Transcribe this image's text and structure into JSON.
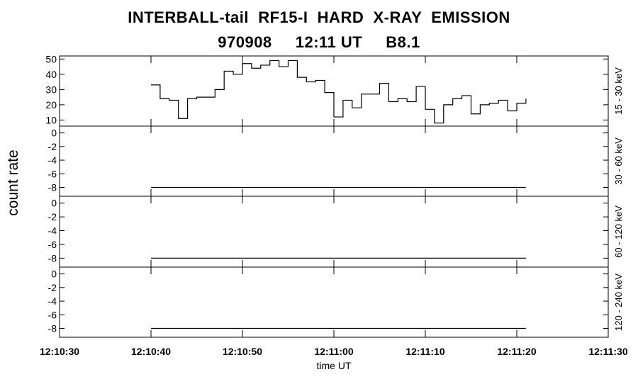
{
  "title": {
    "line1": "INTERBALL-tail  RF15-I  HARD  X-RAY  EMISSION",
    "line2": "970908     12:11 UT     B8.1"
  },
  "ylabel": "count rate",
  "xlabel": "time UT",
  "chart_data": [
    {
      "type": "line",
      "step": true,
      "panel_label": "15 - 30 keV",
      "ylim": [
        6,
        52
      ],
      "yticks": [
        10,
        20,
        30,
        40,
        50
      ],
      "ytick_labels": [
        "10",
        "20",
        "30",
        "40",
        "50"
      ],
      "series": [
        {
          "x": [
            "12:10:40",
            "12:10:41",
            "12:10:42",
            "12:10:43",
            "12:10:44",
            "12:10:45",
            "12:10:46",
            "12:10:47",
            "12:10:48",
            "12:10:49",
            "12:10:50",
            "12:10:51",
            "12:10:52",
            "12:10:53",
            "12:10:54",
            "12:10:55",
            "12:10:56",
            "12:10:57",
            "12:10:58",
            "12:10:59",
            "12:11:00",
            "12:11:01",
            "12:11:02",
            "12:11:03",
            "12:11:04",
            "12:11:05",
            "12:11:06",
            "12:11:07",
            "12:11:08",
            "12:11:09",
            "12:11:10",
            "12:11:11",
            "12:11:12",
            "12:11:13",
            "12:11:14",
            "12:11:15",
            "12:11:16",
            "12:11:17",
            "12:11:18",
            "12:11:19",
            "12:11:20",
            "12:11:21"
          ],
          "y": [
            33,
            24,
            23,
            11,
            24,
            25,
            25,
            30,
            42,
            40,
            47,
            44,
            46,
            49,
            45,
            49,
            38,
            35,
            36,
            28,
            12,
            23,
            18,
            27,
            27,
            34,
            22,
            24,
            22,
            32,
            17,
            8,
            20,
            24,
            26,
            14,
            20,
            21,
            23,
            16,
            21,
            24
          ]
        }
      ],
      "x_end": "12:11:21"
    },
    {
      "type": "line",
      "panel_label": "30 - 60 keV",
      "ylim": [
        -9.3,
        1.0
      ],
      "yticks": [
        -8,
        -6,
        -4,
        -2,
        0
      ],
      "ytick_labels": [
        "-8",
        "-6",
        "-4",
        "-2",
        "0"
      ],
      "series": [
        {
          "x": [
            "12:10:40",
            "12:11:21"
          ],
          "y": [
            -8,
            -8
          ]
        }
      ]
    },
    {
      "type": "line",
      "panel_label": "60 - 120 keV",
      "ylim": [
        -9.3,
        1.0
      ],
      "yticks": [
        -8,
        -6,
        -4,
        -2,
        0
      ],
      "ytick_labels": [
        "-8",
        "-6",
        "-4",
        "-2",
        "0"
      ],
      "series": [
        {
          "x": [
            "12:10:40",
            "12:11:21"
          ],
          "y": [
            -8,
            -8
          ]
        }
      ]
    },
    {
      "type": "line",
      "panel_label": "120 - 240 keV",
      "ylim": [
        -9.3,
        1.0
      ],
      "yticks": [
        -8,
        -6,
        -4,
        -2,
        0
      ],
      "ytick_labels": [
        "-8",
        "-6",
        "-4",
        "-2",
        "0"
      ],
      "series": [
        {
          "x": [
            "12:10:40",
            "12:11:21"
          ],
          "y": [
            -8,
            -8
          ]
        }
      ]
    }
  ],
  "x_axis": {
    "xlim": [
      "12:10:30",
      "12:11:30"
    ],
    "tick_labels": [
      "12:10:30",
      "12:10:40",
      "12:10:50",
      "12:11:00",
      "12:11:10",
      "12:11:20",
      "12:11:30"
    ]
  }
}
